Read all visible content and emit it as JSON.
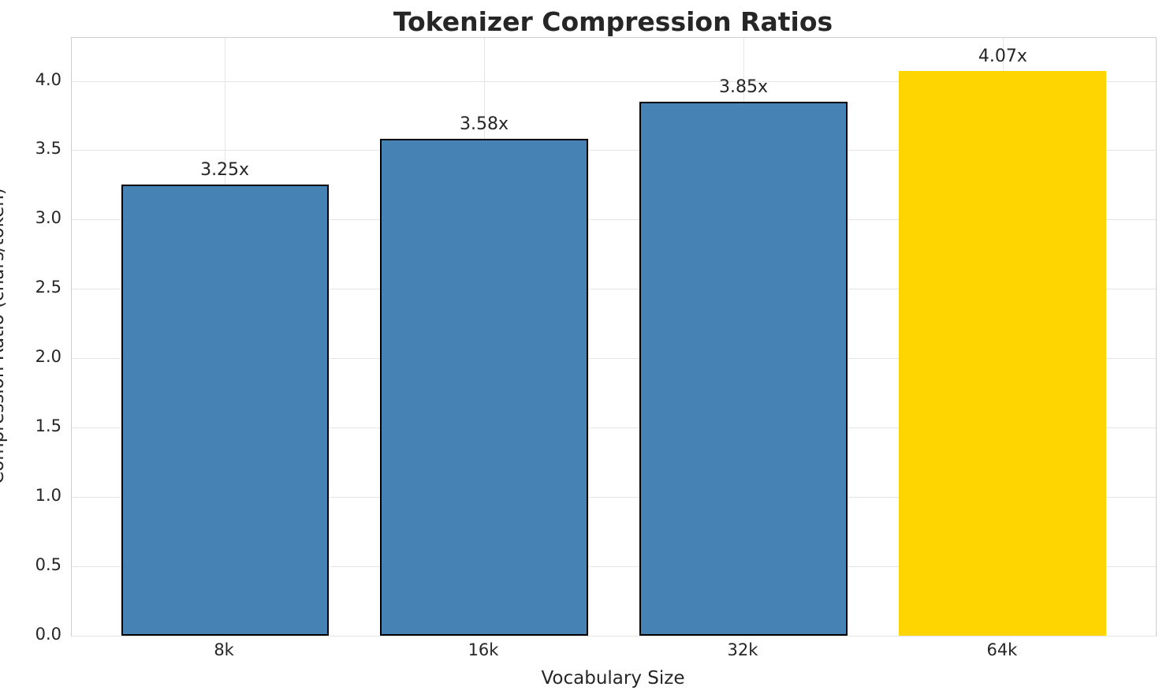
{
  "chart_data": {
    "type": "bar",
    "title": "Tokenizer Compression Ratios",
    "xlabel": "Vocabulary Size",
    "ylabel": "Compression Ratio (chars/token)",
    "categories": [
      "8k",
      "16k",
      "32k",
      "64k"
    ],
    "values": [
      3.25,
      3.58,
      3.85,
      4.07
    ],
    "bar_labels": [
      "3.25x",
      "3.58x",
      "3.85x",
      "4.07x"
    ],
    "bar_colors": [
      "#4682B4",
      "#4682B4",
      "#4682B4",
      "#FFD500"
    ],
    "bar_edge_colors": [
      "#000000",
      "#000000",
      "#000000",
      "none"
    ],
    "ylim": [
      0,
      4.31
    ],
    "yticks": [
      0.0,
      0.5,
      1.0,
      1.5,
      2.0,
      2.5,
      3.0,
      3.5,
      4.0
    ],
    "ytick_labels": [
      "0.0",
      "0.5",
      "1.0",
      "1.5",
      "2.0",
      "2.5",
      "3.0",
      "3.5",
      "4.0"
    ],
    "grid": true,
    "legend": "none",
    "highlight_category": "64k"
  },
  "colors": {
    "bar_blue": "#4682B4",
    "bar_gold": "#FFD500",
    "bar_edge": "#000000",
    "grid": "#e5e5e5",
    "spine": "#cfcfcf",
    "text": "#262626",
    "background": "#ffffff"
  }
}
